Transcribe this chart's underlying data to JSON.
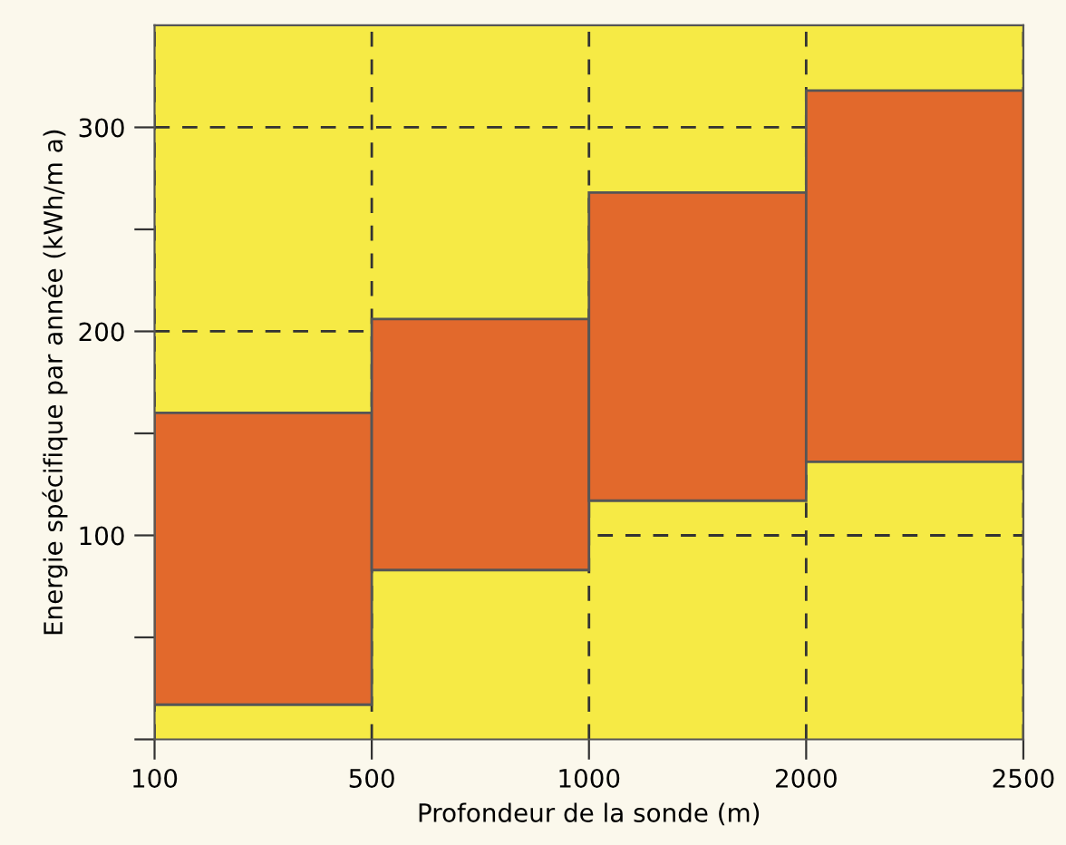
{
  "chart_data": {
    "type": "bar",
    "xlabel": "Profondeur de la sonde (m)",
    "ylabel": "Energie spécifique par année (kWh/m a)",
    "categories": [
      "100",
      "500",
      "1000",
      "2000",
      "2500"
    ],
    "values": [
      143,
      123,
      151,
      182,
      null
    ],
    "base": [
      17,
      83,
      117,
      136,
      null
    ],
    "color": "#e2692c",
    "ylim": [
      0,
      350
    ],
    "yticks": [
      {
        "value": 0,
        "label": null
      },
      {
        "value": 50,
        "label": null
      },
      100,
      {
        "value": 150,
        "label": null
      },
      200,
      {
        "value": 250,
        "label": null
      },
      300
    ],
    "grid": true
  }
}
